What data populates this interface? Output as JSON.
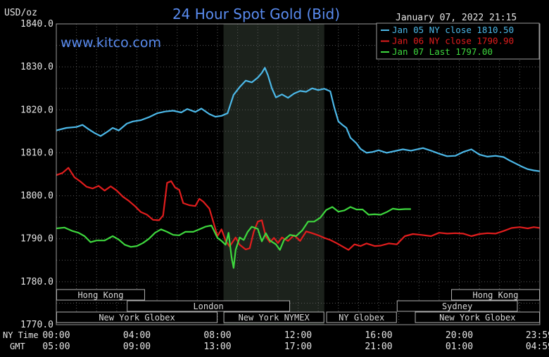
{
  "header": {
    "title": "24 Hour Spot Gold (Bid)",
    "unit": "USD/oz",
    "datetime": "January 07, 2022 21:15",
    "website": "www.kitco.com"
  },
  "axis_labels": {
    "ny_time": "NY Time",
    "gmt": "GMT"
  },
  "sessions": {
    "row1": [
      {
        "name": "Hong Kong",
        "start": 0,
        "end": 4.4
      },
      {
        "name": "Hong Kong",
        "start": 19.6,
        "end": 24
      }
    ],
    "row2": [
      {
        "name": "London",
        "start": 3.5,
        "end": 11.6
      },
      {
        "name": "Sydney",
        "start": 16.9,
        "end": 22.9
      }
    ],
    "row3": [
      {
        "name": "New York Globex",
        "start": 0,
        "end": 8.0
      },
      {
        "name": "New York NYMEX",
        "start": 8.3,
        "end": 13.3
      },
      {
        "name": "NY Globex",
        "start": 13.4,
        "end": 16.9
      },
      {
        "name": "New York Globex",
        "start": 17.8,
        "end": 24
      }
    ]
  },
  "chart_data": {
    "type": "line",
    "title": "24 Hour Spot Gold (Bid)",
    "ylabel": "USD/oz",
    "xlim": [
      0,
      24
    ],
    "ylim": [
      1770,
      1840
    ],
    "x_ticks": [
      {
        "hour": 0,
        "ny": "00:00",
        "gmt": "05:00"
      },
      {
        "hour": 4,
        "ny": "04:00",
        "gmt": "09:00"
      },
      {
        "hour": 8,
        "ny": "08:00",
        "gmt": "13:00"
      },
      {
        "hour": 12,
        "ny": "12:00",
        "gmt": "17:00"
      },
      {
        "hour": 16,
        "ny": "16:00",
        "gmt": "21:00"
      },
      {
        "hour": 20,
        "ny": "20:00",
        "gmt": "01:00"
      },
      {
        "hour": 23.98,
        "ny": "23:59",
        "gmt": "04:59"
      }
    ],
    "y_ticks": [
      "1770.0",
      "1780.0",
      "1790.0",
      "1800.0",
      "1810.0",
      "1820.0",
      "1830.0",
      "1840.0"
    ],
    "shaded_region": [
      8.3,
      13.3
    ],
    "legend_position": "top-right",
    "series": [
      {
        "name": "Jan 05 NY close 1810.50",
        "color": "#4cb8e8",
        "points": [
          [
            0,
            1815.2
          ],
          [
            0.5,
            1815.8
          ],
          [
            1,
            1816
          ],
          [
            1.3,
            1816.5
          ],
          [
            1.6,
            1815.5
          ],
          [
            1.9,
            1814.6
          ],
          [
            2.2,
            1813.9
          ],
          [
            2.5,
            1814.8
          ],
          [
            2.8,
            1815.8
          ],
          [
            3.1,
            1815.2
          ],
          [
            3.5,
            1816.8
          ],
          [
            3.8,
            1817.3
          ],
          [
            4.2,
            1817.6
          ],
          [
            4.6,
            1818.3
          ],
          [
            5,
            1819.2
          ],
          [
            5.4,
            1819.6
          ],
          [
            5.8,
            1819.8
          ],
          [
            6.2,
            1819.4
          ],
          [
            6.5,
            1820.2
          ],
          [
            6.9,
            1819.5
          ],
          [
            7.2,
            1820.3
          ],
          [
            7.6,
            1819
          ],
          [
            7.9,
            1818.4
          ],
          [
            8.2,
            1818.6
          ],
          [
            8.5,
            1819.2
          ],
          [
            8.8,
            1823.5
          ],
          [
            9.1,
            1825.3
          ],
          [
            9.4,
            1826.8
          ],
          [
            9.7,
            1826.4
          ],
          [
            10,
            1827.5
          ],
          [
            10.2,
            1828.6
          ],
          [
            10.35,
            1829.8
          ],
          [
            10.5,
            1828.1
          ],
          [
            10.7,
            1825
          ],
          [
            10.9,
            1822.9
          ],
          [
            11.2,
            1823.6
          ],
          [
            11.5,
            1822.8
          ],
          [
            11.8,
            1823.8
          ],
          [
            12.1,
            1824.4
          ],
          [
            12.4,
            1824.2
          ],
          [
            12.7,
            1825
          ],
          [
            13,
            1824.6
          ],
          [
            13.3,
            1824.9
          ],
          [
            13.6,
            1824.3
          ],
          [
            13.8,
            1820.5
          ],
          [
            14,
            1817.3
          ],
          [
            14.2,
            1816.5
          ],
          [
            14.4,
            1815.8
          ],
          [
            14.6,
            1813.5
          ],
          [
            14.9,
            1812.2
          ],
          [
            15.1,
            1810.9
          ],
          [
            15.4,
            1810
          ],
          [
            15.7,
            1810.2
          ],
          [
            16,
            1810.6
          ],
          [
            16.4,
            1810
          ],
          [
            16.8,
            1810.4
          ],
          [
            17.2,
            1810.8
          ],
          [
            17.6,
            1810.5
          ],
          [
            18.2,
            1811.1
          ],
          [
            18.6,
            1810.5
          ],
          [
            19,
            1809.8
          ],
          [
            19.4,
            1809.2
          ],
          [
            19.8,
            1809.3
          ],
          [
            20.2,
            1810.2
          ],
          [
            20.6,
            1810.8
          ],
          [
            21,
            1809.6
          ],
          [
            21.4,
            1809.1
          ],
          [
            21.8,
            1809.3
          ],
          [
            22.2,
            1809
          ],
          [
            22.5,
            1808.2
          ],
          [
            22.8,
            1807.5
          ],
          [
            23.1,
            1806.8
          ],
          [
            23.4,
            1806.2
          ],
          [
            23.7,
            1805.9
          ],
          [
            24,
            1805.7
          ]
        ]
      },
      {
        "name": "Jan 06 NY close 1790.90",
        "color": "#e11d1d",
        "points": [
          [
            0,
            1804.8
          ],
          [
            0.3,
            1805.3
          ],
          [
            0.6,
            1806.5
          ],
          [
            0.9,
            1804.3
          ],
          [
            1.2,
            1803.3
          ],
          [
            1.5,
            1802.1
          ],
          [
            1.8,
            1801.7
          ],
          [
            2.1,
            1802.3
          ],
          [
            2.4,
            1801.2
          ],
          [
            2.7,
            1802.2
          ],
          [
            3,
            1801.2
          ],
          [
            3.3,
            1799.8
          ],
          [
            3.6,
            1798.8
          ],
          [
            3.9,
            1797.6
          ],
          [
            4.2,
            1796.2
          ],
          [
            4.5,
            1795.6
          ],
          [
            4.8,
            1794.4
          ],
          [
            5.1,
            1794.3
          ],
          [
            5.3,
            1795.4
          ],
          [
            5.5,
            1803
          ],
          [
            5.7,
            1803.4
          ],
          [
            5.9,
            1801.9
          ],
          [
            6.1,
            1801.4
          ],
          [
            6.3,
            1798.3
          ],
          [
            6.6,
            1797.8
          ],
          [
            6.9,
            1797.6
          ],
          [
            7.1,
            1799.3
          ],
          [
            7.3,
            1798.6
          ],
          [
            7.6,
            1797
          ],
          [
            7.8,
            1793.8
          ],
          [
            8,
            1790.6
          ],
          [
            8.2,
            1792.2
          ],
          [
            8.4,
            1789.6
          ],
          [
            8.6,
            1788.2
          ],
          [
            8.9,
            1790.3
          ],
          [
            9.1,
            1788.6
          ],
          [
            9.4,
            1787.5
          ],
          [
            9.6,
            1787.8
          ],
          [
            9.8,
            1791.6
          ],
          [
            10,
            1794
          ],
          [
            10.2,
            1794.3
          ],
          [
            10.4,
            1790.5
          ],
          [
            10.6,
            1789.2
          ],
          [
            10.8,
            1790.2
          ],
          [
            11,
            1789
          ],
          [
            11.2,
            1790.3
          ],
          [
            11.5,
            1789.5
          ],
          [
            11.8,
            1790.8
          ],
          [
            12.1,
            1789.5
          ],
          [
            12.4,
            1791.7
          ],
          [
            12.7,
            1791.3
          ],
          [
            13,
            1790.8
          ],
          [
            13.3,
            1790.2
          ],
          [
            13.6,
            1789.7
          ],
          [
            13.9,
            1789
          ],
          [
            14.2,
            1788.2
          ],
          [
            14.5,
            1787.4
          ],
          [
            14.8,
            1788.7
          ],
          [
            15.1,
            1788.3
          ],
          [
            15.4,
            1788.9
          ],
          [
            15.8,
            1788.3
          ],
          [
            16.1,
            1788.4
          ],
          [
            16.5,
            1788.9
          ],
          [
            16.9,
            1788.7
          ],
          [
            17.3,
            1790.6
          ],
          [
            17.7,
            1791.1
          ],
          [
            18.1,
            1790.9
          ],
          [
            18.6,
            1790.6
          ],
          [
            19,
            1791.4
          ],
          [
            19.4,
            1791.2
          ],
          [
            19.8,
            1791.3
          ],
          [
            20.2,
            1791.2
          ],
          [
            20.6,
            1790.6
          ],
          [
            21,
            1791.1
          ],
          [
            21.4,
            1791.3
          ],
          [
            21.8,
            1791.2
          ],
          [
            22.2,
            1791.8
          ],
          [
            22.6,
            1792.5
          ],
          [
            23,
            1792.7
          ],
          [
            23.4,
            1792.4
          ],
          [
            23.7,
            1792.7
          ],
          [
            24,
            1792.5
          ]
        ]
      },
      {
        "name": "Jan 07 Last 1797.00",
        "color": "#3ed83e",
        "points": [
          [
            0,
            1792.4
          ],
          [
            0.4,
            1792.6
          ],
          [
            0.8,
            1791.8
          ],
          [
            1.1,
            1791.4
          ],
          [
            1.4,
            1790.6
          ],
          [
            1.7,
            1789.2
          ],
          [
            2,
            1789.6
          ],
          [
            2.4,
            1789.6
          ],
          [
            2.8,
            1790.6
          ],
          [
            3.1,
            1789.8
          ],
          [
            3.4,
            1788.6
          ],
          [
            3.7,
            1788.1
          ],
          [
            4,
            1788.3
          ],
          [
            4.3,
            1789
          ],
          [
            4.6,
            1790
          ],
          [
            4.9,
            1791.4
          ],
          [
            5.2,
            1792.2
          ],
          [
            5.5,
            1791.6
          ],
          [
            5.8,
            1790.9
          ],
          [
            6.1,
            1790.8
          ],
          [
            6.4,
            1791.6
          ],
          [
            6.8,
            1791.6
          ],
          [
            7.1,
            1792.2
          ],
          [
            7.4,
            1792.8
          ],
          [
            7.7,
            1793.1
          ],
          [
            8,
            1790.2
          ],
          [
            8.2,
            1789.5
          ],
          [
            8.4,
            1788.6
          ],
          [
            8.55,
            1791.4
          ],
          [
            8.7,
            1785.7
          ],
          [
            8.8,
            1783.2
          ],
          [
            8.9,
            1787.4
          ],
          [
            9.1,
            1790.3
          ],
          [
            9.3,
            1789.7
          ],
          [
            9.5,
            1791.6
          ],
          [
            9.7,
            1792.8
          ],
          [
            10,
            1792.3
          ],
          [
            10.2,
            1789.4
          ],
          [
            10.4,
            1791.3
          ],
          [
            10.6,
            1789.6
          ],
          [
            10.9,
            1788.7
          ],
          [
            11.1,
            1787.4
          ],
          [
            11.3,
            1789.7
          ],
          [
            11.6,
            1790.9
          ],
          [
            11.9,
            1790.6
          ],
          [
            12.2,
            1791.9
          ],
          [
            12.5,
            1794
          ],
          [
            12.8,
            1794
          ],
          [
            13.1,
            1794.9
          ],
          [
            13.4,
            1796.7
          ],
          [
            13.7,
            1797.4
          ],
          [
            14,
            1796.3
          ],
          [
            14.3,
            1796.6
          ],
          [
            14.6,
            1797.4
          ],
          [
            14.9,
            1796.8
          ],
          [
            15.2,
            1796.8
          ],
          [
            15.5,
            1795.6
          ],
          [
            15.8,
            1795.7
          ],
          [
            16.1,
            1795.6
          ],
          [
            16.4,
            1796.2
          ],
          [
            16.7,
            1797
          ],
          [
            17,
            1796.8
          ],
          [
            17.3,
            1796.9
          ],
          [
            17.6,
            1796.9
          ]
        ]
      }
    ]
  }
}
